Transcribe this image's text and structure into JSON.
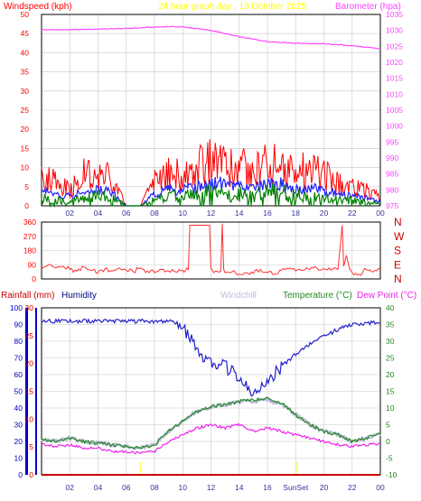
{
  "header": {
    "windspeed_label": "Windspeed (kph)",
    "title": "24 hour graph day , 13 October 2025",
    "barometer_label": "Barometer (hpa)"
  },
  "colors": {
    "windspeed": "#ff0000",
    "wind_avg": "#2020ff",
    "wind_low": "#008000",
    "barometer": "#ff44ff",
    "title": "#ffff00",
    "direction": "#ff3030",
    "compass": "#cc0000",
    "rain_axis": "#0000cc",
    "humidity": "#2222cc",
    "windchill": "#bbbbdd",
    "temperature": "#228822",
    "dewpoint": "#ee22ee",
    "rainfall": "#cc0000",
    "grid": "#c8c8c8",
    "frame": "#000000"
  },
  "x_tick_labels": [
    "02",
    "04",
    "06",
    "08",
    "10",
    "12",
    "14",
    "16",
    "18",
    "20",
    "22",
    "00"
  ],
  "panel3_x_tick_labels": [
    "02",
    "04",
    "06",
    "08",
    "10",
    "12",
    "14",
    "16",
    "SunSet",
    "20",
    "22",
    "00"
  ],
  "compass_labels": [
    "N",
    "W",
    "S",
    "E",
    "N"
  ],
  "panel3_header": {
    "rainfall_label": "Rainfall (mm)",
    "humidity_label": "Humidity",
    "windchill_label": "Windchill",
    "temperature_label": "Temperature (°C)",
    "dewpoint_label": "Dew Point (°C)"
  },
  "chart_data": [
    {
      "type": "line",
      "panel": "wind-barometer",
      "x_unit": "hour",
      "xlim": [
        0,
        24
      ],
      "left_axis": {
        "label": "Windspeed (kph)",
        "ylim": [
          0,
          50
        ],
        "ticks": [
          0,
          5,
          10,
          15,
          20,
          25,
          30,
          35,
          40,
          45,
          50
        ]
      },
      "right_axis": {
        "label": "Barometer (hpa)",
        "ylim": [
          975,
          1035
        ],
        "ticks": [
          975,
          980,
          985,
          990,
          995,
          1000,
          1005,
          1010,
          1015,
          1020,
          1025,
          1030,
          1035
        ]
      },
      "series": [
        {
          "name": "Barometer (hpa)",
          "axis": "right",
          "x": [
            0,
            2,
            4,
            6,
            8,
            9,
            10,
            12,
            14,
            16,
            18,
            20,
            22,
            24
          ],
          "values": [
            1030.2,
            1030.2,
            1030.4,
            1030.6,
            1031,
            1031.2,
            1031.1,
            1030,
            1028,
            1026.5,
            1026,
            1025.8,
            1025.2,
            1024.2
          ]
        },
        {
          "name": "Windspeed (kph)",
          "axis": "left",
          "x": [
            0,
            1,
            2,
            3,
            4,
            5,
            6,
            7,
            8,
            9,
            10,
            11,
            12,
            13,
            14,
            15,
            16,
            17,
            18,
            19,
            20,
            21,
            22,
            23,
            24
          ],
          "values": [
            8,
            6,
            4,
            8,
            8,
            7,
            0,
            0,
            6,
            9,
            8,
            10,
            12,
            11,
            10,
            9,
            11,
            11,
            9,
            9,
            8,
            6,
            5,
            4,
            2
          ]
        },
        {
          "name": "average",
          "axis": "left",
          "x": [
            0,
            1,
            2,
            3,
            4,
            5,
            6,
            7,
            8,
            9,
            10,
            11,
            12,
            13,
            14,
            15,
            16,
            17,
            18,
            19,
            20,
            21,
            22,
            23,
            24
          ],
          "values": [
            4,
            3,
            2.5,
            3.5,
            4,
            3.5,
            0,
            0,
            3,
            4,
            4,
            5,
            6,
            5.5,
            5,
            4.5,
            5.5,
            5.5,
            4.5,
            4.5,
            4,
            3,
            2.5,
            2,
            1
          ]
        },
        {
          "name": "low",
          "axis": "left",
          "x": [
            0,
            1,
            2,
            3,
            4,
            5,
            6,
            7,
            8,
            9,
            10,
            11,
            12,
            13,
            14,
            15,
            16,
            17,
            18,
            19,
            20,
            21,
            22,
            23,
            24
          ],
          "values": [
            2,
            1.5,
            1,
            2,
            2.5,
            2,
            0,
            0,
            1.5,
            2.5,
            2.5,
            3,
            3.5,
            3,
            3,
            2.5,
            3.5,
            3.5,
            2.5,
            2.5,
            2,
            1.5,
            1.5,
            1,
            0.5
          ]
        }
      ]
    },
    {
      "type": "line",
      "panel": "wind-direction",
      "x_unit": "hour",
      "xlim": [
        0,
        24
      ],
      "y_axis": {
        "ylim": [
          0,
          360
        ],
        "ticks": [
          0,
          90,
          180,
          270,
          360
        ]
      },
      "series": [
        {
          "name": "direction",
          "x": [
            0,
            0.5,
            1,
            1.5,
            2,
            2.5,
            3,
            3.5,
            4,
            4.5,
            5,
            5.5,
            6,
            6.5,
            7,
            7.5,
            8,
            8.5,
            9,
            9.5,
            10,
            10.4,
            10.5,
            11.9,
            12,
            12.2,
            12.7,
            12.8,
            12.9,
            13,
            13.5,
            14,
            14.5,
            15,
            15.5,
            16,
            16.5,
            17,
            17.5,
            18,
            18.5,
            19,
            19.5,
            20,
            20.5,
            21,
            21.3,
            21.4,
            21.6,
            21.8,
            22,
            22.5,
            23,
            23.5,
            24
          ],
          "values": [
            60,
            90,
            70,
            80,
            60,
            50,
            75,
            55,
            40,
            65,
            50,
            70,
            55,
            45,
            70,
            50,
            40,
            60,
            50,
            45,
            55,
            60,
            340,
            340,
            70,
            40,
            50,
            350,
            60,
            40,
            45,
            30,
            40,
            35,
            60,
            40,
            30,
            55,
            65,
            50,
            55,
            60,
            70,
            65,
            55,
            60,
            340,
            80,
            150,
            70,
            40,
            30,
            60,
            45,
            70
          ]
        }
      ]
    },
    {
      "type": "line",
      "panel": "temperature-humidity-rain",
      "x_unit": "hour",
      "xlim": [
        0,
        24
      ],
      "left_axis": {
        "label": "Humidity",
        "ylim": [
          0,
          100
        ],
        "ticks": [
          0,
          10,
          20,
          30,
          40,
          50,
          60,
          70,
          80,
          90,
          100
        ]
      },
      "rain_axis": {
        "label": "Rainfall (mm)",
        "ylim": [
          0,
          30
        ],
        "ticks": [
          0,
          5,
          10,
          15,
          20,
          25,
          30
        ]
      },
      "right_axis": {
        "label": "Temperature (°C)",
        "ylim": [
          -10,
          40
        ],
        "ticks": [
          -10,
          -5,
          0,
          5,
          10,
          15,
          20,
          25,
          30,
          35,
          40
        ]
      },
      "series": [
        {
          "name": "Humidity",
          "axis": "left",
          "x": [
            0,
            2,
            4,
            6,
            8,
            9,
            9.5,
            10,
            10.5,
            11,
            12,
            13,
            14,
            15,
            15.5,
            16,
            17,
            18,
            19,
            20,
            21,
            22,
            23,
            24
          ],
          "values": [
            92,
            92,
            92,
            92,
            92,
            92,
            91,
            88,
            82,
            74,
            68,
            65,
            58,
            50,
            54,
            55,
            65,
            72,
            78,
            83,
            87,
            90,
            91,
            91
          ]
        },
        {
          "name": "Windchill",
          "axis": "right",
          "x": [
            0,
            1,
            2,
            3,
            4,
            5,
            6,
            7,
            8,
            9,
            10,
            11,
            12,
            13,
            14,
            15,
            16,
            17,
            18,
            19,
            20,
            21,
            22,
            23,
            24
          ],
          "values": [
            0.5,
            0,
            1,
            0,
            -0.5,
            -1,
            -1.5,
            -2,
            -1,
            3,
            6,
            9,
            10,
            11,
            12,
            12,
            12.5,
            11,
            8,
            5,
            3,
            2,
            0,
            1,
            2
          ]
        },
        {
          "name": "Temperature (°C)",
          "axis": "right",
          "x": [
            0,
            1,
            2,
            3,
            4,
            5,
            6,
            7,
            8,
            9,
            10,
            11,
            12,
            13,
            14,
            15,
            16,
            17,
            18,
            19,
            20,
            21,
            22,
            23,
            24
          ],
          "values": [
            0.5,
            0,
            1,
            0,
            -0.5,
            -1,
            -1.5,
            -2,
            -1,
            3,
            6,
            9,
            10.5,
            11,
            12,
            12.5,
            13,
            11.5,
            8,
            5,
            3,
            2,
            0,
            1,
            2.5
          ]
        },
        {
          "name": "Dew Point (°C)",
          "axis": "right",
          "x": [
            0,
            1,
            2,
            3,
            4,
            5,
            6,
            7,
            8,
            9,
            10,
            11,
            12,
            13,
            14,
            15,
            16,
            17,
            18,
            19,
            20,
            21,
            22,
            23,
            24
          ],
          "values": [
            -1,
            -1.5,
            -1,
            -2,
            -2,
            -3,
            -3,
            -3.5,
            -3,
            0,
            2,
            4,
            5,
            4,
            5,
            3,
            4,
            3,
            2,
            1,
            0,
            -1,
            -1.5,
            -1,
            -0.5
          ]
        },
        {
          "name": "Rainfall (mm)",
          "axis": "rain",
          "x": [
            0,
            24
          ],
          "values": [
            0,
            0
          ]
        }
      ],
      "annotations": [
        {
          "type": "marker",
          "x": 7,
          "color": "#ffff00"
        },
        {
          "type": "marker",
          "x": 18.1,
          "color": "#ffff00",
          "label": "SunSet"
        }
      ]
    }
  ]
}
